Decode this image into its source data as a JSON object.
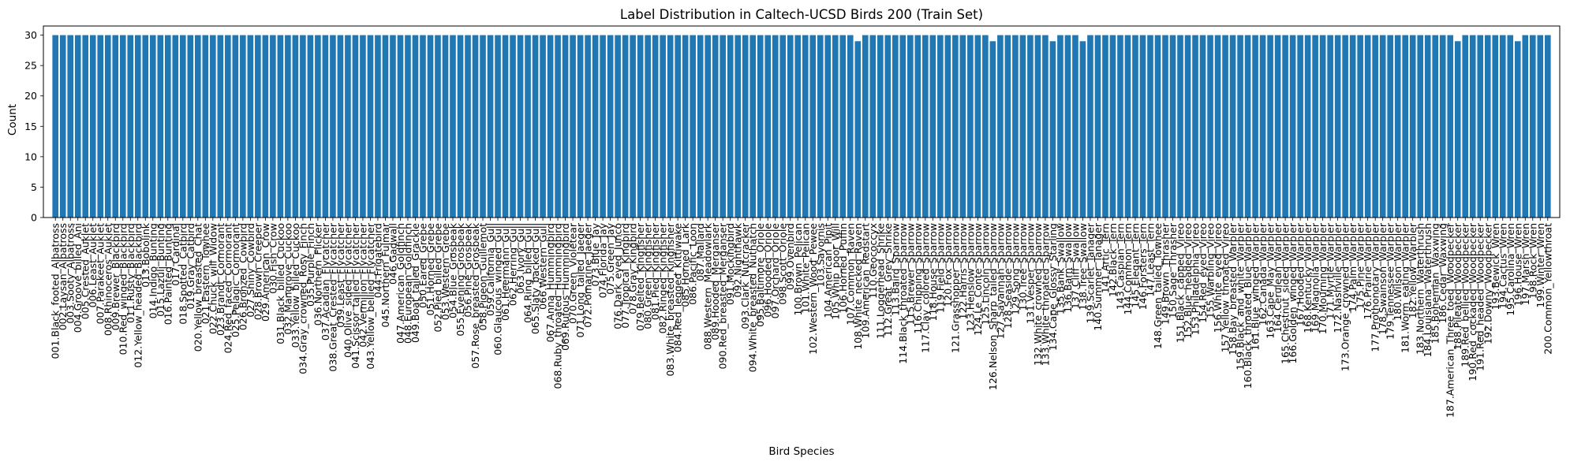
{
  "chart_data": {
    "type": "bar",
    "title": "Label Distribution in Caltech-UCSD Birds 200 (Train Set)",
    "xlabel": "Bird Species",
    "ylabel": "Count",
    "ylim": [
      0,
      31.5
    ],
    "yticks": [
      0,
      5,
      10,
      15,
      20,
      25,
      30
    ],
    "grid": false,
    "bar_color": "#1f77b4",
    "categories": [
      "001.Black_footed_Albatross",
      "002.Laysan_Albatross",
      "003.Sooty_Albatross",
      "004.Groove_billed_Ani",
      "005.Crested_Auklet",
      "006.Least_Auklet",
      "007.Parakeet_Auklet",
      "008.Rhinoceros_Auklet",
      "009.Brewer_Blackbird",
      "010.Red_winged_Blackbird",
      "011.Rusty_Blackbird",
      "012.Yellow_headed_Blackbird",
      "013.Bobolink",
      "014.Indigo_Bunting",
      "015.Lazuli_Bunting",
      "016.Painted_Bunting",
      "017.Cardinal",
      "018.Spotted_Catbird",
      "019.Gray_Catbird",
      "020.Yellow_breasted_Chat",
      "021.Eastern_Towhee",
      "022.Chuck_will_Widow",
      "023.Brandt_Cormorant",
      "024.Red_faced_Cormorant",
      "025.Pelagic_Cormorant",
      "026.Bronzed_Cowbird",
      "027.Shiny_Cowbird",
      "028.Brown_Creeper",
      "029.American_Crow",
      "030.Fish_Crow",
      "031.Black_billed_Cuckoo",
      "032.Mangrove_Cuckoo",
      "033.Yellow_billed_Cuckoo",
      "034.Gray_crowned_Rosy_Finch",
      "035.Purple_Finch",
      "036.Northern_Flicker",
      "037.Acadian_Flycatcher",
      "038.Great_Crested_Flycatcher",
      "039.Least_Flycatcher",
      "040.Olive_sided_Flycatcher",
      "041.Scissor_tailed_Flycatcher",
      "042.Vermilion_Flycatcher",
      "043.Yellow_bellied_Flycatcher",
      "044.Frigatebird",
      "045.Northern_Fulmar",
      "046.Gadwall",
      "047.American_Goldfinch",
      "048.European_Goldfinch",
      "049.Boat_tailed_Grackle",
      "050.Eared_Grebe",
      "051.Horned_Grebe",
      "052.Pied_billed_Grebe",
      "053.Western_Grebe",
      "054.Blue_Grosbeak",
      "055.Evening_Grosbeak",
      "056.Pine_Grosbeak",
      "057.Rose_breasted_Grosbeak",
      "058.Pigeon_Guillemot",
      "059.California_Gull",
      "060.Glaucous_winged_Gull",
      "061.Heermann_Gull",
      "062.Herring_Gull",
      "063.Ivory_Gull",
      "064.Ring_billed_Gull",
      "065.Slaty_backed_Gull",
      "066.Western_Gull",
      "067.Anna_Hummingbird",
      "068.Ruby_throated_Hummingbird",
      "069.Rufous_Hummingbird",
      "070.Green_Violetear",
      "071.Long_tailed_Jaeger",
      "072.Pomarine_Jaeger",
      "073.Blue_Jay",
      "074.Florida_Jay",
      "075.Green_Jay",
      "076.Dark_eyed_Junco",
      "077.Tropical_Kingbird",
      "078.Gray_Kingbird",
      "079.Belted_Kingfisher",
      "080.Green_Kingfisher",
      "081.Pied_Kingfisher",
      "082.Ringed_Kingfisher",
      "083.White_breasted_Kingfisher",
      "084.Red_legged_Kittiwake",
      "085.Horned_Lark",
      "086.Pacific_Loon",
      "087.Mallard",
      "088.Western_Meadowlark",
      "089.Hooded_Merganser",
      "090.Red_breasted_Merganser",
      "091.Mockingbird",
      "092.Nighthawk",
      "093.Clark_Nutcracker",
      "094.White_breasted_Nuthatch",
      "095.Baltimore_Oriole",
      "096.Hooded_Oriole",
      "097.Orchard_Oriole",
      "098.Scott_Oriole",
      "099.Ovenbird",
      "100.Brown_Pelican",
      "101.White_Pelican",
      "102.Western_Wood_Pewee",
      "103.Sayornis",
      "104.American_Pipit",
      "105.Whip_poor_Will",
      "106.Horned_Puffin",
      "107.Common_Raven",
      "108.White_necked_Raven",
      "109.American_Redstart",
      "110.Geococcyx",
      "111.Loggerhead_Shrike",
      "112.Great_Grey_Shrike",
      "113.Baird_Sparrow",
      "114.Black_throated_Sparrow",
      "115.Brewer_Sparrow",
      "116.Chipping_Sparrow",
      "117.Clay_colored_Sparrow",
      "118.House_Sparrow",
      "119.Field_Sparrow",
      "120.Fox_Sparrow",
      "121.Grasshopper_Sparrow",
      "122.Harris_Sparrow",
      "123.Henslow_Sparrow",
      "124.Le_Conte_Sparrow",
      "125.Lincoln_Sparrow",
      "126.Nelson_Sharp_tailed_Sparrow",
      "127.Savannah_Sparrow",
      "128.Seaside_Sparrow",
      "129.Song_Sparrow",
      "130.Tree_Sparrow",
      "131.Vesper_Sparrow",
      "132.White_crowned_Sparrow",
      "133.White_throated_Sparrow",
      "134.Cape_Glossy_Starling",
      "135.Bank_Swallow",
      "136.Barn_Swallow",
      "137.Cliff_Swallow",
      "138.Tree_Swallow",
      "139.Scarlet_Tanager",
      "140.Summer_Tanager",
      "141.Artic_Tern",
      "142.Black_Tern",
      "143.Caspian_Tern",
      "144.Common_Tern",
      "145.Elegant_Tern",
      "146.Forsters_Tern",
      "147.Least_Tern",
      "148.Green_tailed_Towhee",
      "149.Brown_Thrasher",
      "150.Sage_Thrasher",
      "151.Black_capped_Vireo",
      "152.Blue_headed_Vireo",
      "153.Philadelphia_Vireo",
      "154.Red_eyed_Vireo",
      "155.Warbling_Vireo",
      "156.White_eyed_Vireo",
      "157.Yellow_throated_Vireo",
      "158.Bay_breasted_Warbler",
      "159.Black_and_white_Warbler",
      "160.Black_throated_Blue_Warbler",
      "161.Blue_winged_Warbler",
      "162.Canada_Warbler",
      "163.Cape_May_Warbler",
      "164.Cerulean_Warbler",
      "165.Chestnut_sided_Warbler",
      "166.Golden_winged_Warbler",
      "167.Hooded_Warbler",
      "168.Kentucky_Warbler",
      "169.Magnolia_Warbler",
      "170.Mourning_Warbler",
      "171.Myrtle_Warbler",
      "172.Nashville_Warbler",
      "173.Orange_crowned_Warbler",
      "174.Palm_Warbler",
      "175.Pine_Warbler",
      "176.Prairie_Warbler",
      "177.Prothonotary_Warbler",
      "178.Swainson_Warbler",
      "179.Tennessee_Warbler",
      "180.Wilson_Warbler",
      "181.Worm_eating_Warbler",
      "182.Yellow_Warbler",
      "183.Northern_Waterthrush",
      "184.Louisiana_Waterthrush",
      "185.Bohemian_Waxwing",
      "186.Cedar_Waxwing",
      "187.American_Three_toed_Woodpecker",
      "188.Pileated_Woodpecker",
      "189.Red_bellied_Woodpecker",
      "190.Red_cockaded_Woodpecker",
      "191.Red_headed_Woodpecker",
      "192.Downy_Woodpecker",
      "193.Bewick_Wren",
      "194.Cactus_Wren",
      "195.Carolina_Wren",
      "196.House_Wren",
      "197.Marsh_Wren",
      "198.Rock_Wren",
      "199.Winter_Wren",
      "200.Common_Yellowthroat"
    ],
    "values": [
      30,
      30,
      30,
      30,
      30,
      30,
      30,
      30,
      30,
      30,
      30,
      30,
      30,
      30,
      30,
      30,
      30,
      30,
      30,
      30,
      30,
      30,
      30,
      30,
      30,
      30,
      30,
      30,
      30,
      30,
      30,
      30,
      30,
      30,
      30,
      30,
      30,
      30,
      30,
      30,
      30,
      30,
      30,
      30,
      30,
      30,
      30,
      30,
      30,
      30,
      30,
      30,
      30,
      30,
      30,
      30,
      30,
      30,
      30,
      30,
      30,
      30,
      30,
      30,
      30,
      30,
      30,
      30,
      30,
      30,
      30,
      30,
      30,
      30,
      30,
      30,
      30,
      30,
      30,
      30,
      30,
      30,
      30,
      30,
      30,
      30,
      30,
      30,
      30,
      30,
      30,
      30,
      30,
      30,
      30,
      30,
      30,
      30,
      30,
      30,
      30,
      30,
      30,
      30,
      30,
      30,
      30,
      29,
      30,
      30,
      30,
      30,
      30,
      30,
      30,
      30,
      30,
      30,
      30,
      30,
      30,
      30,
      30,
      30,
      30,
      29,
      30,
      30,
      30,
      30,
      30,
      30,
      30,
      29,
      30,
      30,
      30,
      29,
      30,
      30,
      30,
      30,
      30,
      30,
      30,
      30,
      30,
      30,
      30,
      30,
      30,
      30,
      30,
      30,
      30,
      30,
      30,
      30,
      30,
      30,
      30,
      30,
      30,
      30,
      30,
      30,
      30,
      30,
      30,
      30,
      30,
      30,
      30,
      30,
      30,
      30,
      30,
      30,
      30,
      30,
      30,
      30,
      30,
      30,
      30,
      30,
      30,
      29,
      30,
      30,
      30,
      30,
      30,
      30,
      30,
      29,
      30,
      30,
      30,
      30
    ]
  }
}
